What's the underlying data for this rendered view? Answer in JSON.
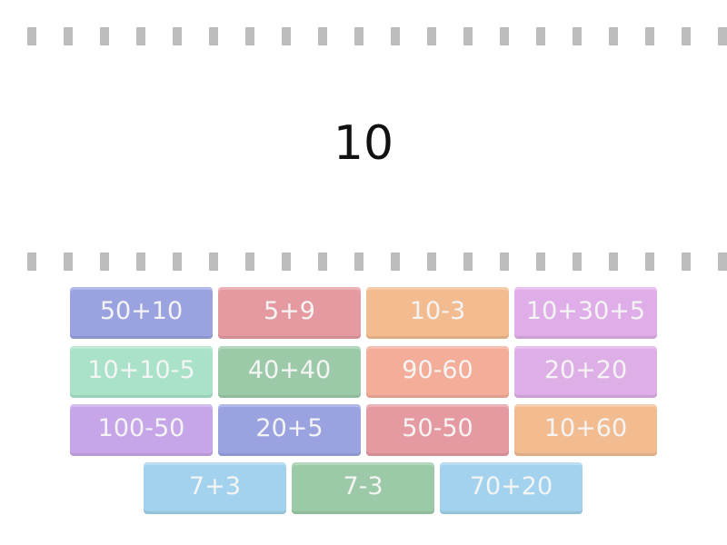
{
  "target": "10",
  "cards": [
    {
      "label": "50+10",
      "color": "#9aa2e0"
    },
    {
      "label": "5+9",
      "color": "#e59aa1"
    },
    {
      "label": "10-3",
      "color": "#f2bb90"
    },
    {
      "label": "10+30+5",
      "color": "#dfaee8"
    },
    {
      "label": "10+10-5",
      "color": "#a9e2c9"
    },
    {
      "label": "40+40",
      "color": "#9ccaa9"
    },
    {
      "label": "90-60",
      "color": "#f3ad98"
    },
    {
      "label": "20+20",
      "color": "#deaee6"
    },
    {
      "label": "100-50",
      "color": "#c6a6e8"
    },
    {
      "label": "20+5",
      "color": "#9aa2e0"
    },
    {
      "label": "50-50",
      "color": "#e59aa1"
    },
    {
      "label": "10+60",
      "color": "#f2bb90"
    },
    {
      "label": "7+3",
      "color": "#a2d2ee"
    },
    {
      "label": "7-3",
      "color": "#9ccaa9"
    },
    {
      "label": "70+20",
      "color": "#a2d2ee"
    }
  ]
}
